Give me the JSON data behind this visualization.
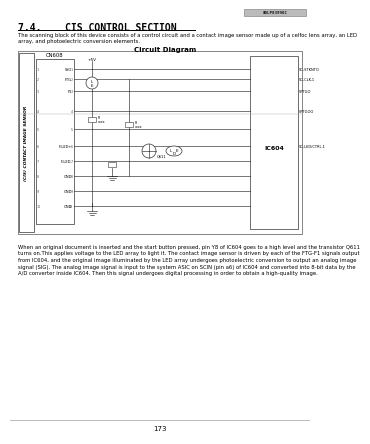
{
  "page_number": "173",
  "doc_ref": "8DLP83990C",
  "section_number": "7.4.",
  "section_title": "CIS CONTROL SECTION",
  "intro_text": "The scanning block of this device consists of a control circuit and a contact image sensor made up of a celfoc lens array, an LED\narray, and photoelectric conversion elements.",
  "diagram_title": "Circuit Diagram",
  "body_text": "When an original document is inserted and the start button pressed, pin Y8 of IC604 goes to a high level and the transistor Q611\nturns on.This applies voltage to the LED array to light it. The contact image sensor is driven by each of the FTG-F1 signals output\nfrom IC604, and the original image illuminated by the LED array undergoes photoelectric conversion to output an analog image\nsignal (SIG). The analog image signal is input to the system ASIC on SCIN (pin a6) of IC604 and converted into 8-bit data by the\nA/D converter inside IC604. Then this signal undergoes digital processing in order to obtain a high-quality image.",
  "bg_color": "#ffffff",
  "text_color": "#000000",
  "title_color": "#000000",
  "cn608_label": "CN608",
  "ic604_label": "IC604",
  "cis_label": "(CIS) CONTACT IMAGE SENSOR"
}
